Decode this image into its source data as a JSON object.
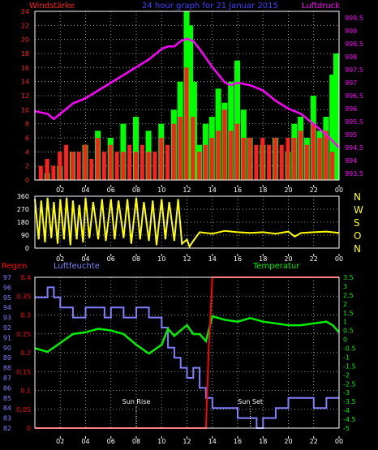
{
  "colors": {
    "wind": "#ff2020",
    "gust": "#00ff00",
    "pressure": "#ff00ff",
    "direction": "#ffff00",
    "rain": "#ff0000",
    "humidity": "#8080ff",
    "temperature": "#00ee00",
    "grid": "#c0c0c0",
    "axis": "#ffffff",
    "title": "#4040ff",
    "compass": "#ffff00"
  },
  "chart_data": [
    {
      "type": "bar",
      "title": "24 hour graph for  21 Januar 2015",
      "left_axis_label": "Windstärke",
      "right_axis_label": "Luftdruck",
      "x_ticks": [
        "02",
        "04",
        "06",
        "08",
        "10",
        "12",
        "14",
        "16",
        "18",
        "20",
        "22",
        "00"
      ],
      "y_left_ticks": [
        "0",
        "2",
        "4",
        "6",
        "8",
        "10",
        "12",
        "14",
        "16",
        "18",
        "20",
        "22",
        "24"
      ],
      "y_left_range": [
        0,
        24
      ],
      "y_right_ticks": [
        "993.5",
        "994",
        "994.5",
        "995",
        "995.5",
        "996",
        "996.5",
        "997",
        "997.5",
        "998",
        "998.5",
        "999",
        "999.5"
      ],
      "y_right_range": [
        993.25,
        999.75
      ],
      "grid": true,
      "series": [
        {
          "name": "Windstärke",
          "kind": "bars",
          "x": [
            0.5,
            1.0,
            1.5,
            2.0,
            2.5,
            3.0,
            3.5,
            4.0,
            4.5,
            5.0,
            5.5,
            6.0,
            6.5,
            7.0,
            7.5,
            8.0,
            8.5,
            9.0,
            9.5,
            10.0,
            10.5,
            11.0,
            11.5,
            12.0,
            12.5,
            13.0,
            13.5,
            14.0,
            14.5,
            15.0,
            15.5,
            16.0,
            16.5,
            17.0,
            17.5,
            18.0,
            18.5,
            19.0,
            19.5,
            20.0,
            20.5,
            21.0,
            21.5,
            22.0,
            22.5,
            23.0,
            23.5
          ],
          "values": [
            2,
            3,
            2,
            4,
            5,
            4,
            4,
            5,
            3,
            6,
            4,
            5,
            4,
            4,
            5,
            4,
            5,
            4,
            4,
            6,
            5,
            8,
            9,
            16,
            9,
            4,
            5,
            6,
            7,
            10,
            7,
            8,
            6,
            6,
            5,
            6,
            5,
            6,
            5,
            6,
            6,
            7,
            5,
            8,
            6,
            7,
            4
          ]
        },
        {
          "name": "Böen",
          "kind": "bars",
          "x": [
            1.0,
            2.0,
            3.0,
            4.0,
            5.0,
            6.0,
            7.0,
            8.0,
            9.0,
            10.0,
            11.0,
            11.5,
            12.0,
            12.3,
            12.6,
            13.0,
            13.5,
            14.0,
            14.5,
            15.0,
            15.5,
            16.0,
            16.5,
            17.0,
            18.0,
            19.0,
            20.0,
            20.5,
            21.0,
            21.5,
            22.0,
            22.5,
            23.0,
            23.5,
            23.8
          ],
          "values": [
            1,
            2,
            4,
            5,
            7,
            6,
            8,
            9,
            7,
            8,
            10,
            14,
            24,
            22,
            14,
            5,
            8,
            9,
            13,
            11,
            14,
            17,
            10,
            6,
            5,
            6,
            4,
            8,
            9,
            6,
            12,
            7,
            9,
            15,
            18
          ]
        },
        {
          "name": "Luftdruck",
          "kind": "line",
          "x": [
            0,
            1,
            1.5,
            2,
            3,
            4,
            5,
            6,
            7,
            8,
            9,
            10,
            10.5,
            11,
            11.5,
            12,
            12.5,
            13,
            14,
            15,
            15.5,
            16,
            17,
            18,
            19,
            20,
            21,
            22,
            23,
            24
          ],
          "values": [
            995.9,
            995.8,
            995.6,
            995.8,
            996.2,
            996.4,
            996.7,
            997.0,
            997.3,
            997.6,
            997.9,
            998.3,
            998.4,
            998.4,
            998.6,
            998.7,
            998.6,
            998.3,
            997.6,
            997.0,
            996.9,
            997.0,
            996.9,
            996.7,
            996.3,
            996.0,
            995.8,
            995.4,
            995.0,
            994.5
          ]
        }
      ]
    },
    {
      "type": "line",
      "x_ticks": [
        "02",
        "04",
        "06",
        "08",
        "10",
        "12",
        "14",
        "16",
        "18",
        "20",
        "22",
        "00"
      ],
      "y_ticks": [
        "0",
        "90",
        "180",
        "270",
        "360"
      ],
      "y_range": [
        0,
        360
      ],
      "compass_labels": [
        "N",
        "W",
        "S",
        "O",
        "N"
      ],
      "grid": true,
      "series": [
        {
          "name": "Windrichtung",
          "x": [
            0,
            0.3,
            0.5,
            0.8,
            1.0,
            1.3,
            1.5,
            1.8,
            2.0,
            2.3,
            2.5,
            2.8,
            3.0,
            3.3,
            3.5,
            3.8,
            4.0,
            4.3,
            4.6,
            5.0,
            5.3,
            5.6,
            6.0,
            6.3,
            6.6,
            7.0,
            7.3,
            7.6,
            8.0,
            8.3,
            8.6,
            9.0,
            9.3,
            9.6,
            10.0,
            10.3,
            10.6,
            11.0,
            11.3,
            11.6,
            12.0,
            12.2,
            12.5,
            13,
            14,
            15,
            16,
            17,
            18,
            19,
            20,
            20.5,
            21,
            22,
            23,
            24
          ],
          "values": [
            340,
            60,
            330,
            40,
            350,
            70,
            320,
            30,
            340,
            60,
            350,
            20,
            330,
            60,
            300,
            40,
            350,
            70,
            320,
            60,
            340,
            50,
            340,
            60,
            330,
            70,
            340,
            30,
            350,
            60,
            320,
            50,
            330,
            20,
            340,
            60,
            320,
            50,
            340,
            30,
            60,
            10,
            50,
            110,
            100,
            120,
            110,
            105,
            110,
            100,
            115,
            80,
            105,
            110,
            115,
            105
          ]
        }
      ]
    },
    {
      "type": "line",
      "left_axis_label_1": "Regen",
      "left_axis_label_2": "Luftfeuchte",
      "right_axis_label": "Temperatur",
      "x_ticks": [
        "02",
        "04",
        "06",
        "08",
        "10",
        "12",
        "14",
        "16",
        "18",
        "20",
        "22",
        "00"
      ],
      "rain_ticks": [
        "0",
        "0.05",
        "0.1",
        "0.15",
        "0.2",
        "0.25",
        "0.3",
        "0.35",
        "0.4"
      ],
      "rain_range": [
        0,
        0.4
      ],
      "humidity_ticks": [
        "82",
        "83",
        "84",
        "85",
        "86",
        "87",
        "88",
        "89",
        "90",
        "91",
        "92",
        "93",
        "94",
        "95",
        "96",
        "97"
      ],
      "humidity_range": [
        82,
        97
      ],
      "temp_ticks": [
        "3.5",
        "3",
        "2.5",
        "2",
        "1.5",
        "1",
        "0.5",
        "0",
        "-0.5",
        "-1",
        "-1.5",
        "-2",
        "-2.5",
        "-3",
        "-3.5",
        "-4",
        "-4.5",
        "-5"
      ],
      "temp_range": [
        -5,
        3.5
      ],
      "annotations": [
        {
          "text": "Sun Rise",
          "x": 8.0
        },
        {
          "text": "Sun Set",
          "x": 17.0
        }
      ],
      "grid": true,
      "series": [
        {
          "name": "Regen",
          "x": [
            0,
            13.5,
            13.7,
            14.0,
            24
          ],
          "values": [
            0,
            0,
            0.2,
            0.4,
            0.4
          ]
        },
        {
          "name": "Luftfeuchte",
          "x": [
            0,
            1,
            1.5,
            2,
            3,
            4,
            5,
            5.5,
            6,
            7,
            8,
            9,
            10,
            10.5,
            11,
            11.5,
            12,
            12.5,
            13,
            13.5,
            14,
            15,
            16,
            17,
            17.5,
            18,
            19,
            20,
            21,
            22,
            23,
            24
          ],
          "values": [
            95,
            96,
            95,
            94,
            93,
            94,
            94,
            93,
            94,
            93,
            94,
            93,
            92,
            90,
            89,
            88,
            87,
            88,
            86,
            85,
            84,
            84,
            83,
            83,
            82,
            83,
            84,
            85,
            85,
            84,
            85,
            85
          ]
        },
        {
          "name": "Temperatur",
          "x": [
            0,
            1,
            2,
            3,
            4,
            5,
            6,
            7,
            8,
            9,
            10,
            10.5,
            11,
            11.5,
            12,
            12.5,
            13,
            13.5,
            14,
            15,
            16,
            17,
            18,
            19,
            20,
            21,
            22,
            23,
            23.5,
            24
          ],
          "values": [
            -0.5,
            -0.7,
            -0.2,
            0.3,
            0.4,
            0.6,
            0.5,
            0.3,
            -0.3,
            -0.8,
            -0.3,
            0.6,
            0.2,
            0.5,
            0.8,
            0.3,
            0.3,
            -0.1,
            1.3,
            1.1,
            1.0,
            1.2,
            1.0,
            0.9,
            0.8,
            0.8,
            0.9,
            1.0,
            0.8,
            0.4
          ]
        }
      ]
    }
  ]
}
